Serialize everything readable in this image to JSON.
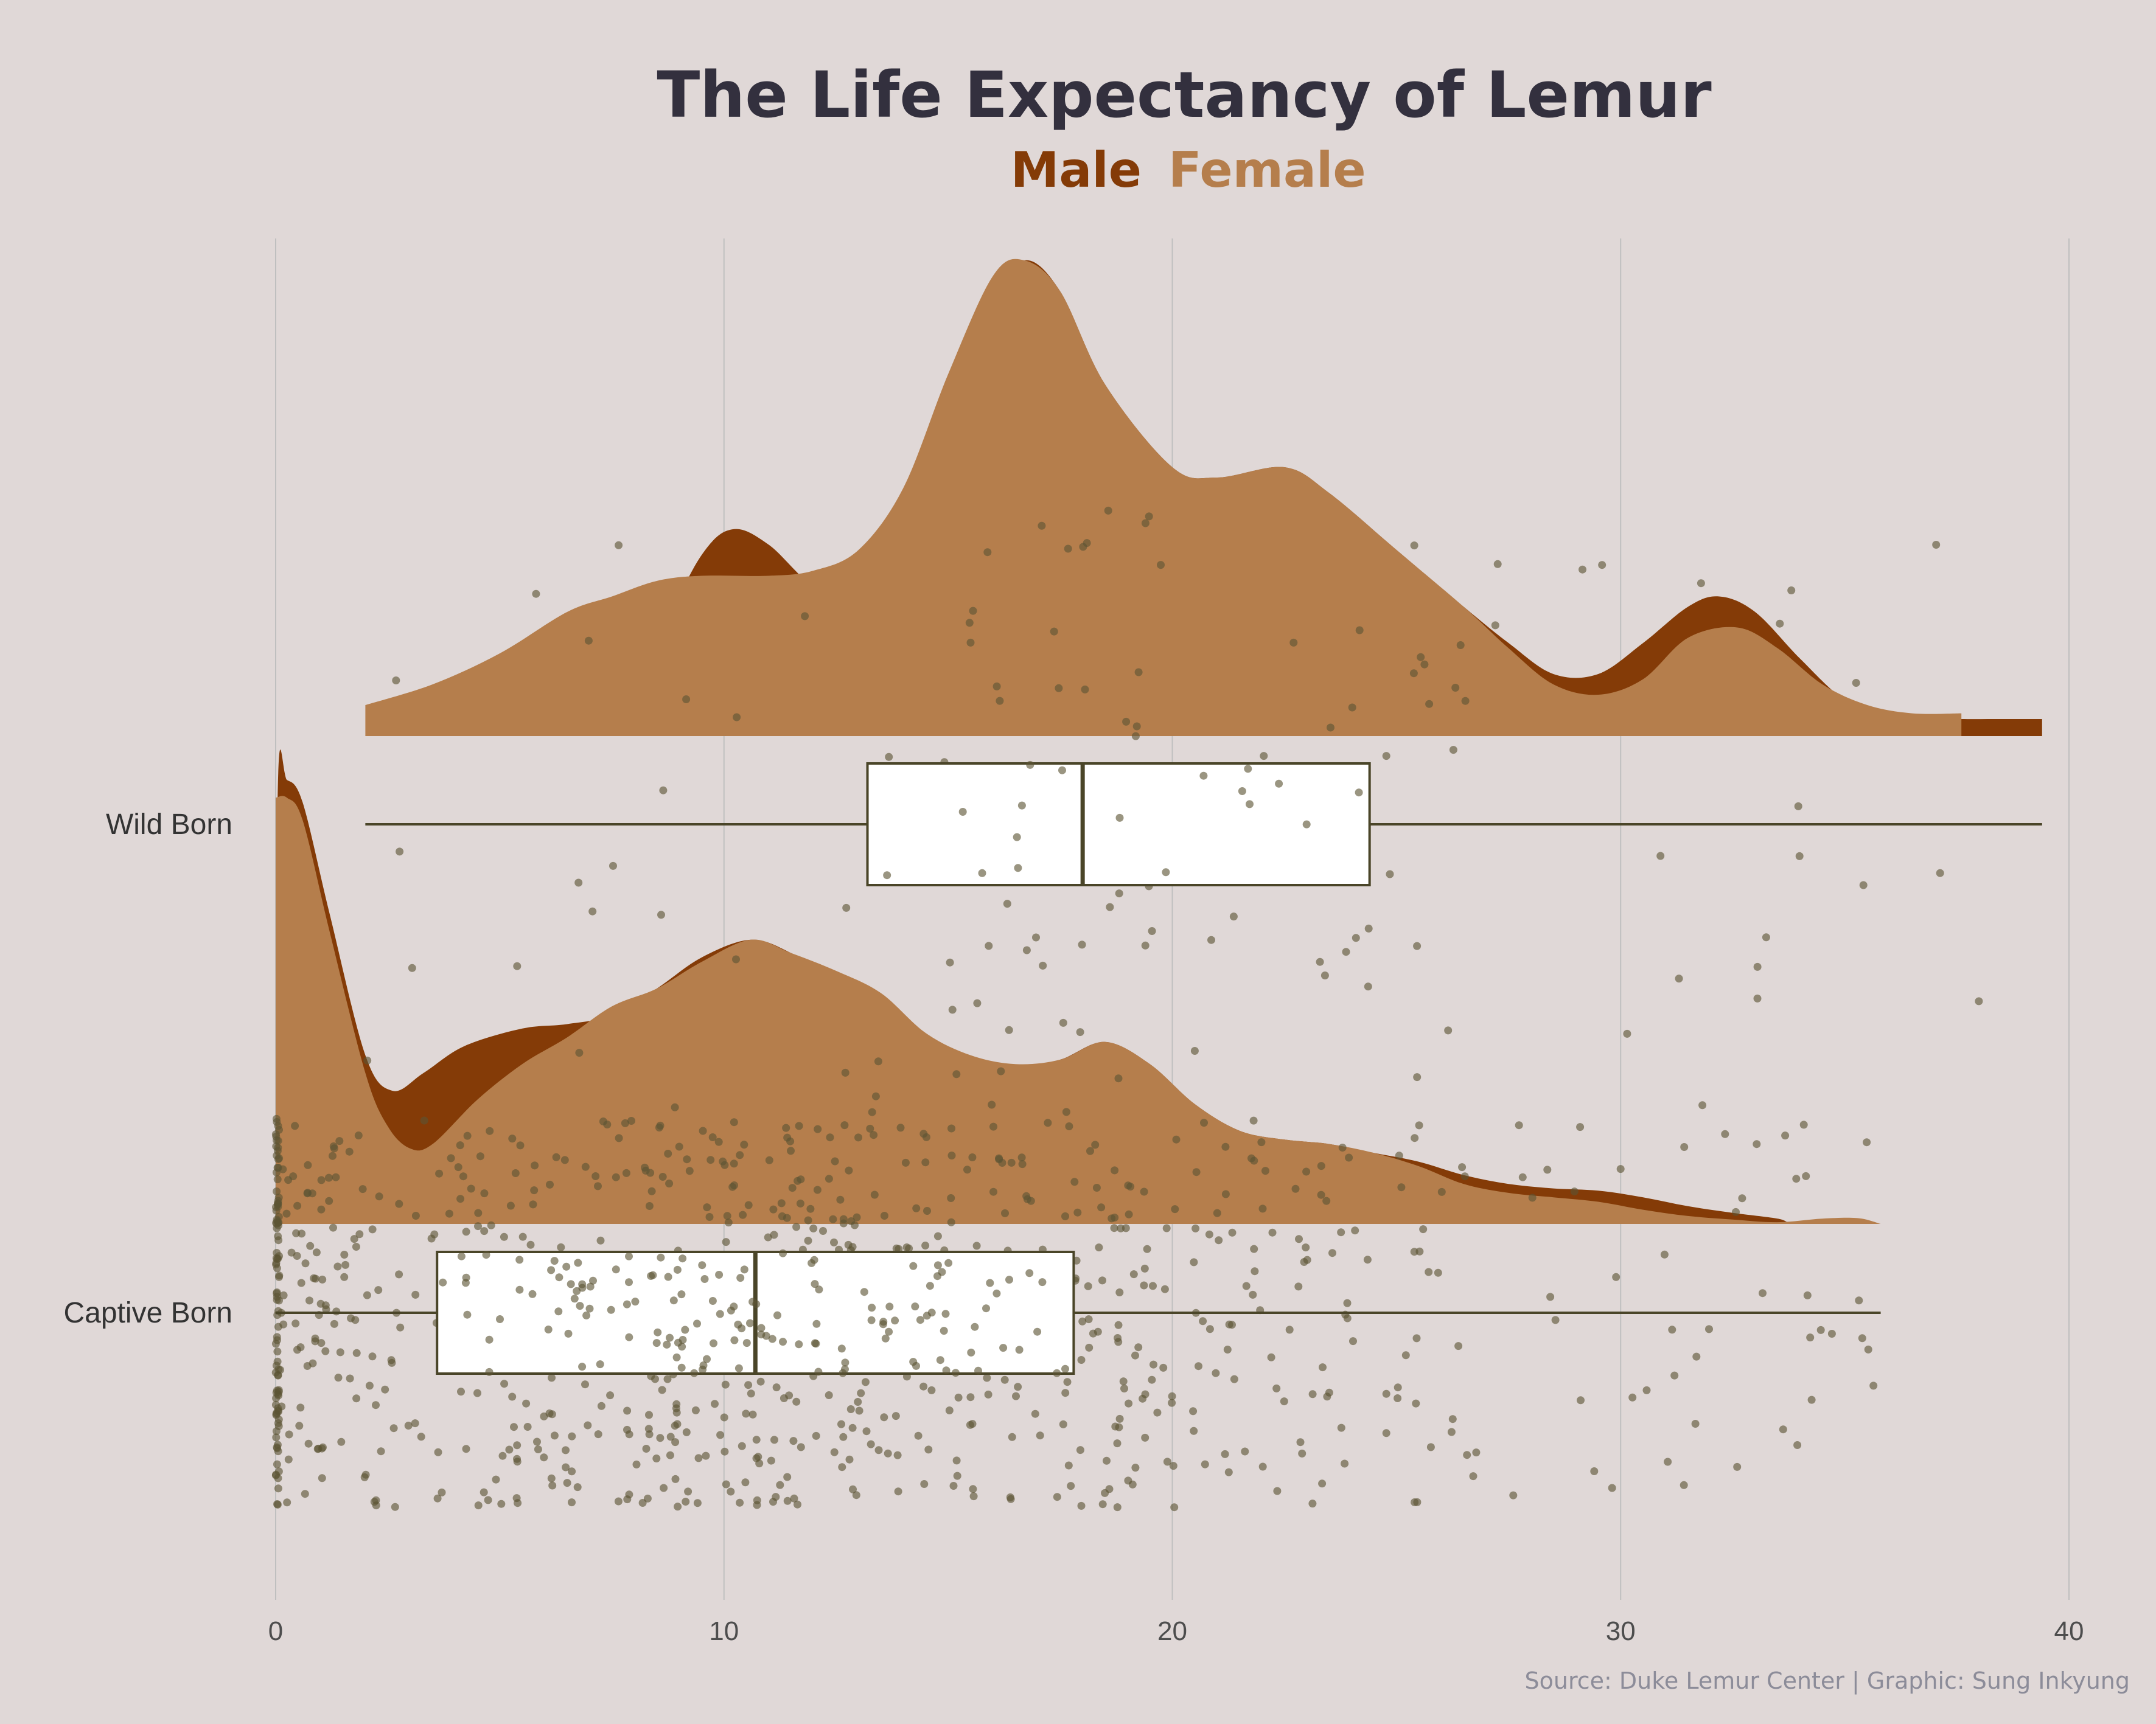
{
  "chart_data": {
    "type": "raincloud",
    "title": "The Life Expectancy of Lemur",
    "caption": "Source: Duke Lemur Center | Graphic: Sung Inkyung",
    "xlabel": "",
    "ylabel": "",
    "xlim": [
      0,
      40
    ],
    "xticks": [
      0,
      10,
      20,
      30,
      40
    ],
    "grid": "vertical major gridlines",
    "legend": {
      "placement": "top-center, under title",
      "entries": [
        {
          "label": "Male",
          "color": "#843B07"
        },
        {
          "label": "Female",
          "color": "#B57E4C"
        }
      ]
    },
    "categories": [
      "Wild Born",
      "Captive Born"
    ],
    "colors": {
      "background": "#E0D8D7",
      "male": "#843B07",
      "female": "#B57E4C",
      "points": "#5C5434",
      "box_fill": "#FFFFFF",
      "box_line": "#4A4528",
      "grid": "#BFBFBF"
    },
    "groups": [
      {
        "name": "Wild Born",
        "box": {
          "min": 2.0,
          "q1": 13.2,
          "median": 18.0,
          "q3": 24.4,
          "max": 39.4
        },
        "range": [
          2.0,
          39.4
        ],
        "n_points": 140,
        "density": {
          "Male": [
            [
              2.0,
              0.0
            ],
            [
              4.5,
              0.01
            ],
            [
              6.5,
              0.03
            ],
            [
              7.5,
              0.07
            ],
            [
              8.5,
              0.19
            ],
            [
              9.5,
              0.35
            ],
            [
              10.2,
              0.4
            ],
            [
              11,
              0.37
            ],
            [
              12,
              0.29
            ],
            [
              13,
              0.27
            ],
            [
              14,
              0.33
            ],
            [
              15,
              0.55
            ],
            [
              16,
              0.84
            ],
            [
              16.7,
              0.92
            ],
            [
              17.5,
              0.86
            ],
            [
              18.5,
              0.68
            ],
            [
              20,
              0.52
            ],
            [
              21,
              0.5
            ],
            [
              22.5,
              0.52
            ],
            [
              23.5,
              0.47
            ],
            [
              25,
              0.36
            ],
            [
              26.5,
              0.25
            ],
            [
              27.5,
              0.18
            ],
            [
              28.5,
              0.12
            ],
            [
              29.5,
              0.12
            ],
            [
              30.5,
              0.18
            ],
            [
              31.5,
              0.25
            ],
            [
              32.2,
              0.27
            ],
            [
              33,
              0.24
            ],
            [
              34,
              0.15
            ],
            [
              35,
              0.07
            ],
            [
              36,
              0.04
            ],
            [
              37,
              0.035
            ],
            [
              37.6,
              0.033
            ],
            [
              38.5,
              0.033
            ],
            [
              39.4,
              0.033
            ]
          ],
          "Female": [
            [
              2.0,
              0.06
            ],
            [
              3.5,
              0.1
            ],
            [
              5,
              0.16
            ],
            [
              6.5,
              0.24
            ],
            [
              7.5,
              0.27
            ],
            [
              8.5,
              0.3
            ],
            [
              9.5,
              0.31
            ],
            [
              11,
              0.31
            ],
            [
              12,
              0.32
            ],
            [
              13,
              0.36
            ],
            [
              14,
              0.48
            ],
            [
              15,
              0.7
            ],
            [
              16,
              0.89
            ],
            [
              16.7,
              0.92
            ],
            [
              17.5,
              0.86
            ],
            [
              18.5,
              0.68
            ],
            [
              20,
              0.52
            ],
            [
              21,
              0.5
            ],
            [
              22.5,
              0.52
            ],
            [
              23.5,
              0.47
            ],
            [
              25,
              0.36
            ],
            [
              26.5,
              0.25
            ],
            [
              27.5,
              0.17
            ],
            [
              28.5,
              0.1
            ],
            [
              29.5,
              0.08
            ],
            [
              30.5,
              0.11
            ],
            [
              31.5,
              0.19
            ],
            [
              32.6,
              0.21
            ],
            [
              33.5,
              0.17
            ],
            [
              34.5,
              0.1
            ],
            [
              35.5,
              0.06
            ],
            [
              36.5,
              0.044
            ],
            [
              37.6,
              0.044
            ]
          ]
        }
      },
      {
        "name": "Captive Born",
        "box": {
          "min": 0.0,
          "q1": 3.6,
          "median": 10.7,
          "q3": 17.8,
          "max": 35.8
        },
        "range": [
          0.0,
          35.8
        ],
        "n_points": 900,
        "density": {
          "Male": [
            [
              0,
              0.0
            ],
            [
              0.05,
              0.99
            ],
            [
              0.25,
              1.0
            ],
            [
              0.6,
              0.95
            ],
            [
              1.2,
              0.7
            ],
            [
              2,
              0.38
            ],
            [
              2.6,
              0.3
            ],
            [
              3.3,
              0.34
            ],
            [
              4.2,
              0.4
            ],
            [
              5.5,
              0.44
            ],
            [
              6.5,
              0.45
            ],
            [
              7.5,
              0.47
            ],
            [
              8.5,
              0.53
            ],
            [
              9.5,
              0.6
            ],
            [
              10.6,
              0.64
            ],
            [
              11.5,
              0.61
            ],
            [
              12.5,
              0.55
            ],
            [
              13.5,
              0.5
            ],
            [
              14.5,
              0.42
            ],
            [
              15.5,
              0.36
            ],
            [
              16.5,
              0.35
            ],
            [
              17.5,
              0.37
            ],
            [
              18.5,
              0.41
            ],
            [
              19.5,
              0.36
            ],
            [
              20.5,
              0.27
            ],
            [
              21.5,
              0.21
            ],
            [
              22.5,
              0.19
            ],
            [
              23.5,
              0.18
            ],
            [
              24.5,
              0.16
            ],
            [
              25.5,
              0.14
            ],
            [
              26.5,
              0.11
            ],
            [
              27.5,
              0.09
            ],
            [
              28.5,
              0.08
            ],
            [
              29.5,
              0.075
            ],
            [
              30.5,
              0.06
            ],
            [
              31.5,
              0.04
            ],
            [
              32.5,
              0.025
            ],
            [
              33.5,
              0.012
            ],
            [
              34,
              0.0
            ],
            [
              35.8,
              0.0
            ]
          ],
          "Female": [
            [
              0,
              0.96
            ],
            [
              0.25,
              0.96
            ],
            [
              0.6,
              0.91
            ],
            [
              1.2,
              0.66
            ],
            [
              2,
              0.34
            ],
            [
              2.5,
              0.22
            ],
            [
              3,
              0.17
            ],
            [
              3.5,
              0.18
            ],
            [
              4.5,
              0.28
            ],
            [
              5.5,
              0.36
            ],
            [
              6.5,
              0.42
            ],
            [
              7.5,
              0.49
            ],
            [
              8.5,
              0.53
            ],
            [
              9.5,
              0.59
            ],
            [
              10.6,
              0.64
            ],
            [
              11.5,
              0.61
            ],
            [
              12.5,
              0.57
            ],
            [
              13.5,
              0.52
            ],
            [
              14.5,
              0.43
            ],
            [
              15.5,
              0.38
            ],
            [
              16.5,
              0.36
            ],
            [
              17.5,
              0.37
            ],
            [
              18.5,
              0.41
            ],
            [
              19.5,
              0.36
            ],
            [
              20.5,
              0.27
            ],
            [
              21.5,
              0.21
            ],
            [
              22.5,
              0.19
            ],
            [
              23.5,
              0.18
            ],
            [
              24.5,
              0.16
            ],
            [
              25.5,
              0.13
            ],
            [
              26.5,
              0.09
            ],
            [
              27.5,
              0.07
            ],
            [
              28.5,
              0.06
            ],
            [
              29.5,
              0.05
            ],
            [
              30.5,
              0.032
            ],
            [
              31.5,
              0.018
            ],
            [
              32.5,
              0.01
            ],
            [
              33.5,
              0.004
            ],
            [
              34.5,
              0.012
            ],
            [
              35.3,
              0.013
            ],
            [
              35.8,
              0.0
            ]
          ]
        }
      }
    ]
  }
}
